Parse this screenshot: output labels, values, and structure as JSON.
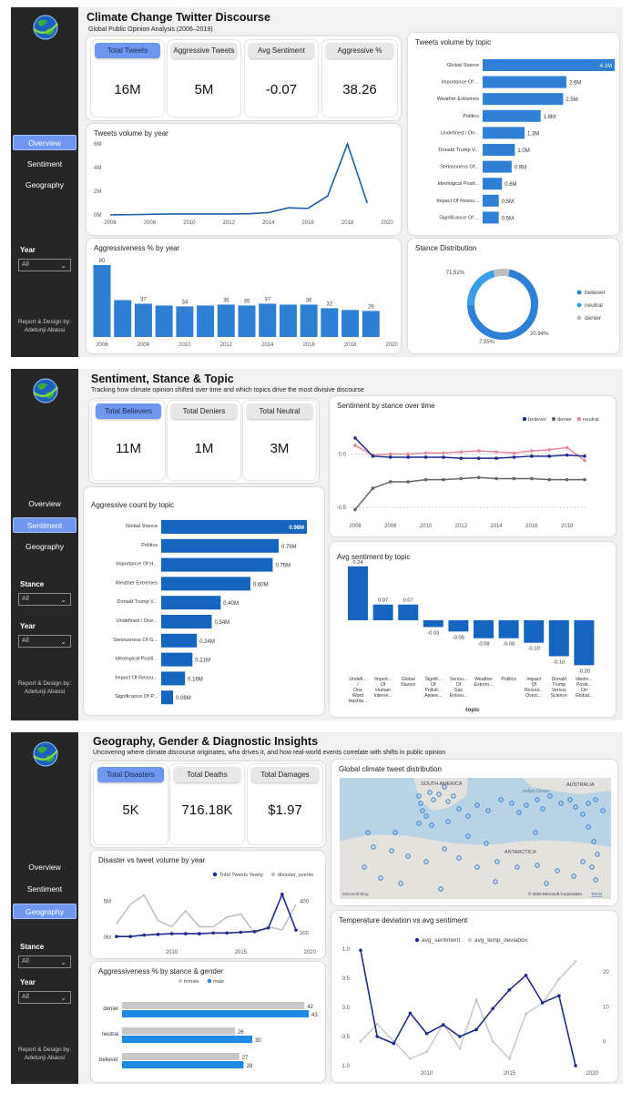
{
  "nav": [
    "Overview",
    "Sentiment",
    "Geography"
  ],
  "p1": {
    "title": "Climate Change Twitter Discourse",
    "subtitle": "Global Public Opinion Analysis (2006–2019)",
    "year_label": "Year",
    "year_value": "All",
    "credit": "Report & Design by: Adetunji Abassi",
    "kpis": [
      {
        "label": "Total Tweets",
        "value": "16M"
      },
      {
        "label": "Aggressive Tweets",
        "value": "5M"
      },
      {
        "label": "Avg Sentiment",
        "value": "-0.07"
      },
      {
        "label": "Aggressive %",
        "value": "38.26"
      }
    ],
    "vol_title": "Tweets volume by year",
    "aggr_title": "Aggressiveness %  by year",
    "topic_title": "Tweets volume by topic",
    "stance_title": "Stance Distribution"
  },
  "p2": {
    "title": "Sentiment, Stance & Topic",
    "subtitle": "Tracking how climate opinion shifted over time and which topics drive the most divisive discourse",
    "stance_label": "Stance",
    "stance_value": "All",
    "year_label": "Year",
    "year_value": "All",
    "credit": "Report & Design by: Adetunji Abassi",
    "kpis": [
      {
        "label": "Total Believers",
        "value": "11M"
      },
      {
        "label": "Total Deniers",
        "value": "1M"
      },
      {
        "label": "Total Neutral",
        "value": "3M"
      }
    ],
    "stance_time_title": "Sentiment by stance over time",
    "aggr_topic_title": "Aggressive count  by topic",
    "avg_topic_title": "Avg sentiment  by topic"
  },
  "p3": {
    "title": "Geography, Gender & Diagnostic Insights",
    "subtitle": "Uncovering where climate discourse originates, who drives it,  and how real-world events correlate with shifts in public opinion",
    "stance_label": "Stance",
    "stance_value": "All",
    "year_label": "Year",
    "year_value": "All",
    "credit": "Report & Design by: Adetunji Abassi",
    "kpis": [
      {
        "label": "Total Disasters",
        "value": "5K"
      },
      {
        "label": "Total Deaths",
        "value": "716.18K"
      },
      {
        "label": "Total Damages",
        "value": "$1.97"
      }
    ],
    "map_title": "Global climate tweet distribution",
    "map_labels": {
      "sa": "SOUTH AMERICA",
      "aus": "AUSTRALIA",
      "ind": "Indian Ocean",
      "ant": "ANTARCTICA",
      "bing": "Microsoft Bing",
      "copy": "© 2020 Microsoft Corporation",
      "terms": "Terms"
    },
    "disaster_title": "Disaster vs tweet volume by year",
    "gender_title": "Aggressiveness % by stance & gender",
    "temp_title": "Temperature deviation vs avg sentiment"
  },
  "colors": {
    "blue": "#2f7fd6",
    "navy": "#1c2a8c",
    "pink": "#e8899a",
    "grey": "#666666",
    "active": "#6f97f0"
  },
  "chart_data": [
    {
      "type": "line",
      "title": "Tweets volume by year",
      "x": [
        2006,
        2007,
        2008,
        2009,
        2010,
        2011,
        2012,
        2013,
        2014,
        2015,
        2016,
        2017,
        2018,
        2019
      ],
      "y": [
        0.01,
        0.02,
        0.05,
        0.08,
        0.08,
        0.08,
        0.08,
        0.1,
        0.2,
        0.6,
        0.55,
        1.6,
        6.0,
        1.0
      ],
      "yticks": [
        "0M",
        "2M",
        "4M",
        "6M"
      ],
      "xticks": [
        "2006",
        "2008",
        "2010",
        "2012",
        "2014",
        "2016",
        "2018",
        "2020"
      ]
    },
    {
      "type": "bar",
      "title": "Aggressiveness %  by year",
      "categories": [
        2006,
        2007,
        2008,
        2009,
        2010,
        2011,
        2012,
        2013,
        2014,
        2015,
        2016,
        2017,
        2018,
        2019
      ],
      "values": [
        80,
        41,
        37,
        35,
        34,
        35,
        36,
        35,
        37,
        36,
        36,
        32,
        30,
        29
      ],
      "labels": [
        "80",
        "",
        "37",
        "",
        "34",
        "",
        "36",
        "35",
        "37",
        "",
        "36",
        "32",
        "",
        "29"
      ],
      "xticks": [
        "2006",
        "2008",
        "2010",
        "2012",
        "2014",
        "2016",
        "2018",
        "2020"
      ]
    },
    {
      "type": "bar",
      "title": "Tweets volume by topic",
      "categories": [
        "Global Stance",
        "Importance Of ...",
        "Weather Extremes",
        "Politics",
        "Undefined / On...",
        "Donald Trump V...",
        "Seriousness Of...",
        "Ideological Posit...",
        "Impact Of Resou...",
        "Significance Of ..."
      ],
      "values": [
        4.1,
        2.6,
        2.5,
        1.8,
        1.3,
        1.0,
        0.9,
        0.6,
        0.5,
        0.5
      ],
      "labels": [
        "4.1M",
        "2.6M",
        "2.5M",
        "1.8M",
        "1.3M",
        "1.0M",
        "0.9M",
        "0.6M",
        "0.5M",
        "0.5M"
      ]
    },
    {
      "type": "pie",
      "title": "Stance Distribution",
      "categories": [
        "believer",
        "neutral",
        "denier"
      ],
      "values": [
        71.52,
        20.94,
        7.55
      ],
      "labels": [
        "71.52%",
        "20.94%",
        "7.55%"
      ]
    },
    {
      "type": "line",
      "title": "Sentiment by stance over time",
      "x": [
        2006,
        2007,
        2008,
        2009,
        2010,
        2011,
        2012,
        2013,
        2014,
        2015,
        2016,
        2017,
        2018,
        2019
      ],
      "series": [
        {
          "name": "believer",
          "values": [
            0.15,
            -0.02,
            -0.03,
            -0.03,
            -0.03,
            -0.03,
            -0.04,
            -0.04,
            -0.04,
            -0.03,
            -0.02,
            -0.02,
            -0.01,
            -0.02
          ]
        },
        {
          "name": "denier",
          "values": [
            -0.52,
            -0.32,
            -0.26,
            -0.26,
            -0.24,
            -0.24,
            -0.23,
            -0.22,
            -0.23,
            -0.23,
            -0.23,
            -0.24,
            -0.24,
            -0.24
          ]
        },
        {
          "name": "neutral",
          "values": [
            0.08,
            -0.01,
            0.0,
            0.0,
            0.01,
            0.01,
            0.02,
            0.03,
            0.02,
            0.01,
            0.03,
            0.04,
            0.06,
            -0.06
          ]
        }
      ],
      "yticks": [
        "-0.5",
        "0.0"
      ],
      "xticks": [
        "2006",
        "2008",
        "2010",
        "2012",
        "2014",
        "2016",
        "2018"
      ]
    },
    {
      "type": "bar",
      "title": "Aggressive count  by topic",
      "categories": [
        "Global Stance",
        "Politics",
        "Importance Of H...",
        "Weather Extremes",
        "Donald Trump V...",
        "Undefined / One...",
        "Seriousness Of G...",
        "Ideological Positi...",
        "Impact Of Resou...",
        "Significance Of P..."
      ],
      "values": [
        0.98,
        0.79,
        0.75,
        0.6,
        0.4,
        0.34,
        0.24,
        0.21,
        0.16,
        0.08
      ],
      "labels": [
        "0.98M",
        "0.79M",
        "0.75M",
        "0.60M",
        "0.40M",
        "0.34M",
        "0.24M",
        "0.21M",
        "0.16M",
        "0.08M"
      ]
    },
    {
      "type": "bar",
      "title": "Avg sentiment  by topic",
      "xlabel": "topic",
      "categories": [
        "Undefi... / One Word Hashta...",
        "Import... Of Human Interve...",
        "Global Stance",
        "Signifi... Of Polluti... Aware...",
        "Seriou... Of Gas Emissi...",
        "Weather Extrem...",
        "Politics",
        "Impact Of Resour... Overc...",
        "Donald Trump Versus Science",
        "Ideolo... Positi... On Global..."
      ],
      "values": [
        0.24,
        0.07,
        0.07,
        -0.03,
        -0.05,
        -0.08,
        -0.08,
        -0.1,
        -0.16,
        -0.2
      ],
      "labels": [
        "0.24",
        "0.07",
        "0.07",
        "-0.03",
        "-0.05",
        "-0.08",
        "-0.08",
        "-0.10",
        "-0.16",
        "-0.20"
      ]
    },
    {
      "type": "line",
      "title": "Disaster vs tweet volume by year",
      "x": [
        2006,
        2007,
        2008,
        2009,
        2010,
        2011,
        2012,
        2013,
        2014,
        2015,
        2016,
        2017,
        2018,
        2019
      ],
      "series": [
        {
          "name": "Total Tweets Yearly",
          "values": [
            0.1,
            0.1,
            0.3,
            0.4,
            0.5,
            0.5,
            0.5,
            0.6,
            0.6,
            0.7,
            0.8,
            1.3,
            6.0,
            1.0
          ]
        },
        {
          "name": "disaster_events",
          "values": [
            330,
            390,
            420,
            340,
            320,
            370,
            320,
            320,
            350,
            360,
            300,
            320,
            310,
            390
          ]
        }
      ],
      "yticks_left": [
        "0M",
        "5M"
      ],
      "yticks_right": [
        "300",
        "400"
      ],
      "xticks": [
        "2010",
        "2015",
        "2020"
      ]
    },
    {
      "type": "bar",
      "title": "Aggressiveness % by stance & gender",
      "categories": [
        "denier",
        "neutral",
        "believer"
      ],
      "series": [
        {
          "name": "female",
          "values": [
            42,
            26,
            27
          ]
        },
        {
          "name": "male",
          "values": [
            43,
            30,
            28
          ]
        }
      ]
    },
    {
      "type": "line",
      "title": "Temperature deviation vs avg sentiment",
      "x": [
        2006,
        2007,
        2008,
        2009,
        2010,
        2011,
        2012,
        2013,
        2014,
        2015,
        2016,
        2017,
        2018,
        2019
      ],
      "series": [
        {
          "name": "avg_sentiment",
          "values": [
            0.98,
            -0.5,
            -0.62,
            -0.1,
            -0.45,
            -0.3,
            -0.5,
            -0.38,
            -0.02,
            0.3,
            0.55,
            0.08,
            0.2,
            -1.0
          ]
        },
        {
          "name": "avg_temp_deviation",
          "values": [
            0,
            5,
            0,
            -5,
            -3,
            5,
            -2,
            12,
            0,
            -5,
            8,
            11,
            18,
            23
          ]
        }
      ],
      "yticks_left": [
        "-1.0",
        "-0.5",
        "0.0",
        "0.5",
        "1.0"
      ],
      "yticks_right": [
        "0",
        "10",
        "20"
      ],
      "xticks": [
        "2010",
        "2015",
        "2020"
      ]
    }
  ]
}
